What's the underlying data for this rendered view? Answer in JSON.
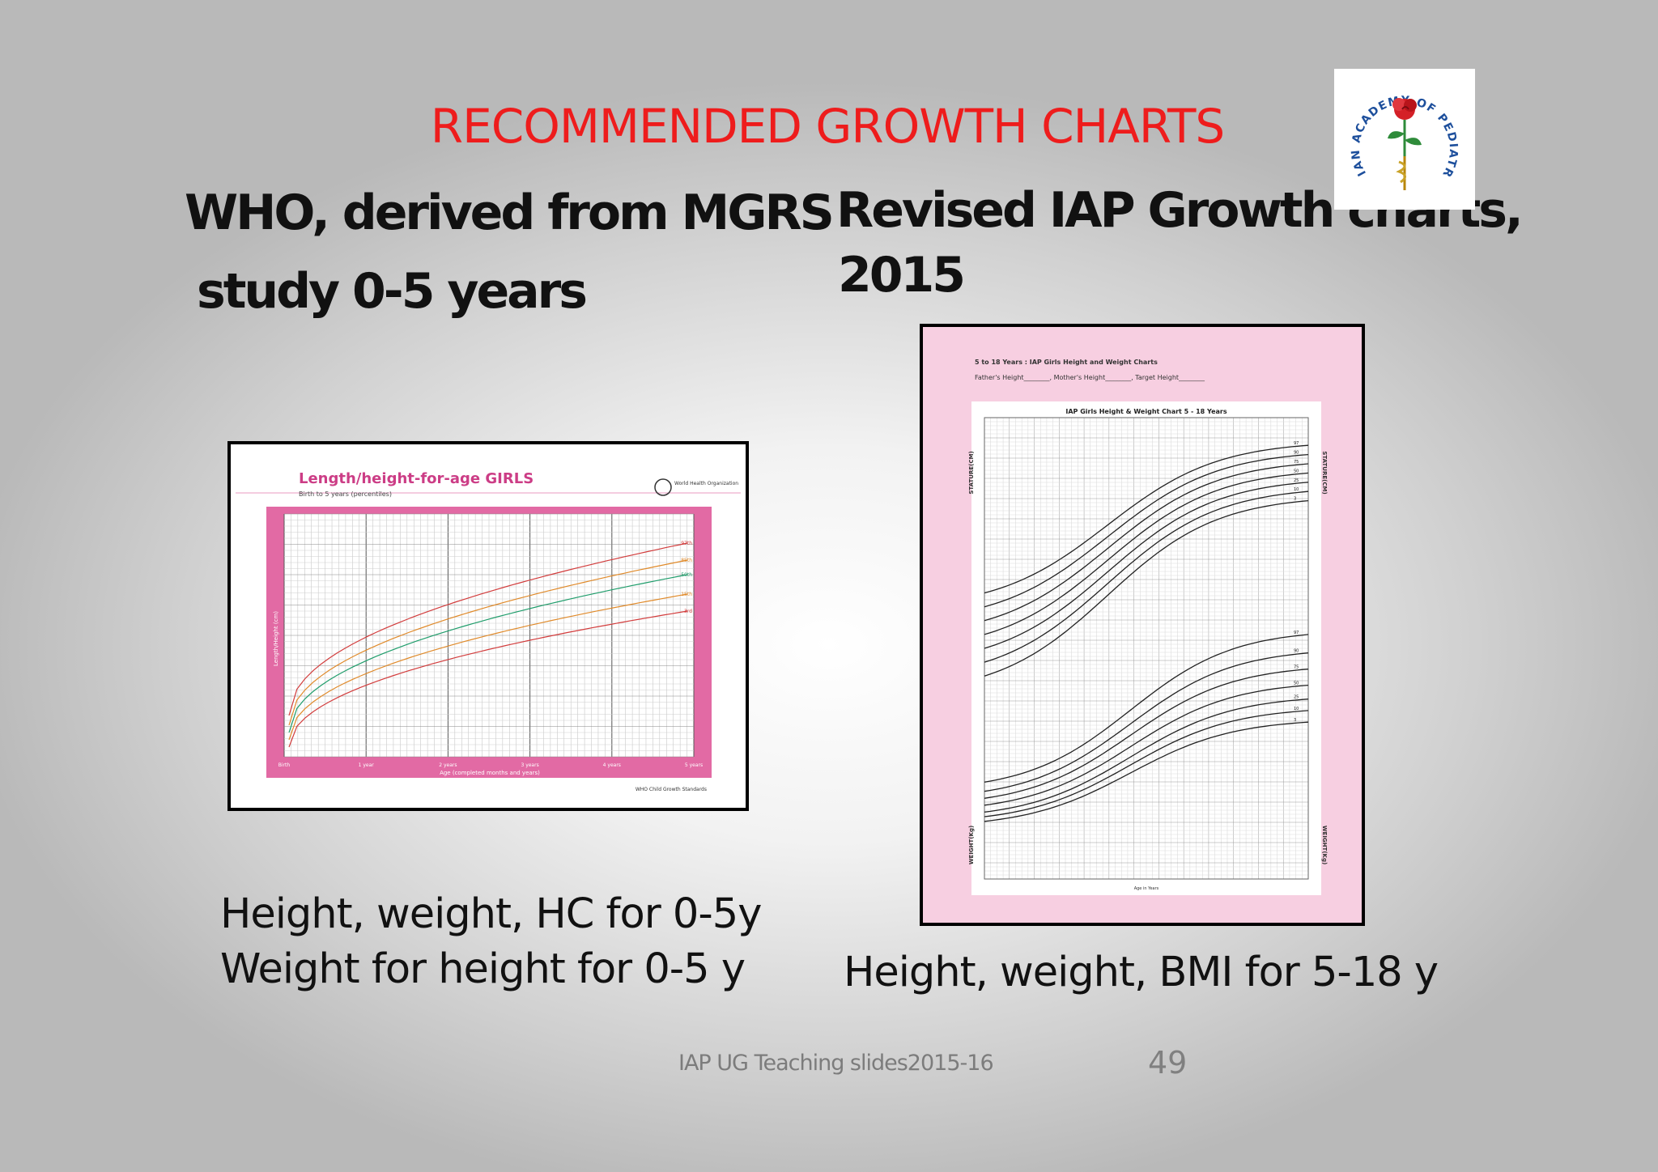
{
  "slide": {
    "title": "RECOMMENDED  GROWTH CHARTS",
    "left_heading_line1": "WHO, derived from MGRS",
    "left_heading_line2": "study  0-5 years",
    "right_heading_line1": "Revised IAP Growth charts,",
    "right_heading_line2": "2015",
    "left_caption_line1": "Height, weight, HC for 0-5y",
    "left_caption_line2": "Weight for height for 0-5 y",
    "right_caption": "Height, weight, BMI for 5-18 y",
    "footer": "IAP UG Teaching slides2015-16",
    "page_number": "49"
  },
  "logo": {
    "text": "INDIAN ACADEMY OF PEDIATRICS",
    "icon": "rose-emblem-icon",
    "colors": {
      "text": "#1d4f9c",
      "rose": "#d42027",
      "leaf": "#2e8b3a"
    }
  },
  "who_chart": {
    "title": "Length/height-for-age GIRLS",
    "subtitle": "Birth to 5 years (percentiles)",
    "org": "World Health Organization",
    "x_label": "Age (completed months and years)",
    "x_ticks": [
      "Birth",
      "1 year",
      "2 years",
      "3 years",
      "4 years",
      "5 years"
    ],
    "y_label": "Length/Height (cm)",
    "curve_labels": [
      "97th",
      "85th",
      "50th",
      "15th",
      "3rd"
    ],
    "footer": "WHO Child Growth Standards",
    "colors": {
      "frame": "#e26aa4",
      "title": "#cc3d86"
    }
  },
  "iap_chart": {
    "header_line1": "5 to 18 Years : IAP Girls Height and Weight Charts",
    "header_line2": "Father's Height________,   Mother's Height________,   Target Height________",
    "title": "IAP Girls Height & Weight Chart 5 - 18 Years",
    "y_label_top": "STATURE(CM)",
    "y_label_bottom": "WEIGHT(Kg)",
    "x_label": "Age in Years",
    "height_curve_labels": [
      "97",
      "90",
      "75",
      "50",
      "25",
      "10",
      "3"
    ],
    "weight_curve_labels": [
      "97",
      "90",
      "75",
      "50",
      "25",
      "10",
      "3"
    ],
    "colors": {
      "background": "#f7cfe1"
    }
  }
}
